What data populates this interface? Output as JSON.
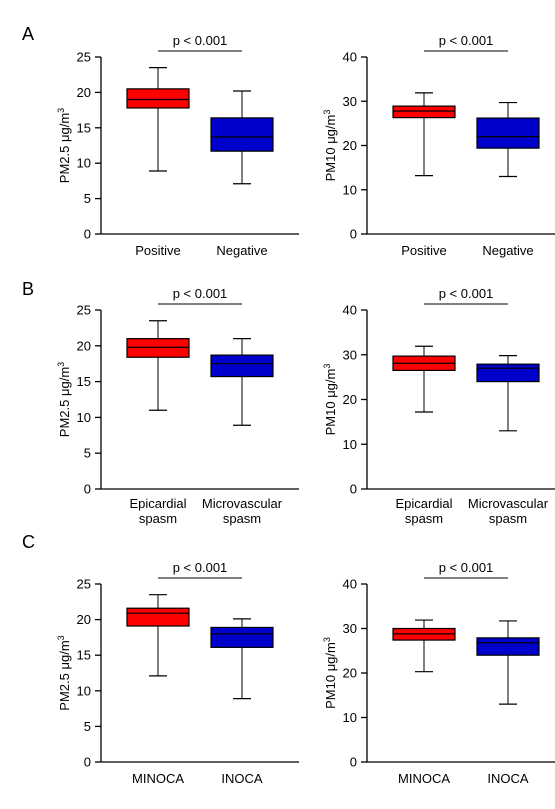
{
  "panel_labels": [
    "A",
    "B",
    "C"
  ],
  "colors": {
    "series1": "#ff0000",
    "series2": "#0000cc",
    "line": "#000000"
  },
  "chart_data": [
    {
      "type": "box",
      "panel": "A",
      "ylabel": "PM2.5 μg/m",
      "ylabel_sup": "3",
      "ylim": [
        0,
        25
      ],
      "yticks": [
        0,
        5,
        10,
        15,
        20,
        25
      ],
      "categories": [
        [
          "Positive"
        ],
        [
          "Negative"
        ]
      ],
      "boxes": [
        {
          "min": 8.9,
          "q1": 17.8,
          "median": 19.0,
          "q3": 20.5,
          "max": 23.5
        },
        {
          "min": 7.1,
          "q1": 11.7,
          "median": 13.7,
          "q3": 16.4,
          "max": 20.2
        }
      ],
      "annotation": "p < 0.001"
    },
    {
      "type": "box",
      "panel": "A",
      "ylabel": "PM10 μg/m",
      "ylabel_sup": "3",
      "ylim": [
        0,
        40
      ],
      "yticks": [
        0,
        10,
        20,
        30,
        40
      ],
      "categories": [
        [
          "Positive"
        ],
        [
          "Negative"
        ]
      ],
      "boxes": [
        {
          "min": 13.2,
          "q1": 26.3,
          "median": 27.8,
          "q3": 28.9,
          "max": 31.9
        },
        {
          "min": 13.0,
          "q1": 19.4,
          "median": 22.0,
          "q3": 26.2,
          "max": 29.7
        }
      ],
      "annotation": "p < 0.001"
    },
    {
      "type": "box",
      "panel": "B",
      "ylabel": "PM2.5 μg/m",
      "ylabel_sup": "3",
      "ylim": [
        0,
        25
      ],
      "yticks": [
        0,
        5,
        10,
        15,
        20,
        25
      ],
      "categories": [
        [
          "Epicardial",
          "spasm"
        ],
        [
          "Microvascular",
          "spasm"
        ]
      ],
      "boxes": [
        {
          "min": 11.0,
          "q1": 18.4,
          "median": 19.8,
          "q3": 21.0,
          "max": 23.5
        },
        {
          "min": 8.9,
          "q1": 15.7,
          "median": 17.5,
          "q3": 18.7,
          "max": 21.0
        }
      ],
      "annotation": "p < 0.001"
    },
    {
      "type": "box",
      "panel": "B",
      "ylabel": "PM10 μg/m",
      "ylabel_sup": "3",
      "ylim": [
        0,
        40
      ],
      "yticks": [
        0,
        10,
        20,
        30,
        40
      ],
      "categories": [
        [
          "Epicardial",
          "spasm"
        ],
        [
          "Microvascular",
          "spasm"
        ]
      ],
      "boxes": [
        {
          "min": 17.2,
          "q1": 26.5,
          "median": 28.1,
          "q3": 29.7,
          "max": 31.9
        },
        {
          "min": 13.0,
          "q1": 24.0,
          "median": 27.0,
          "q3": 27.9,
          "max": 29.8
        }
      ],
      "annotation": "p < 0.001"
    },
    {
      "type": "box",
      "panel": "C",
      "ylabel": "PM2.5 μg/m",
      "ylabel_sup": "3",
      "ylim": [
        0,
        25
      ],
      "yticks": [
        0,
        5,
        10,
        15,
        20,
        25
      ],
      "categories": [
        [
          "MINOCA"
        ],
        [
          "INOCA"
        ]
      ],
      "boxes": [
        {
          "min": 12.1,
          "q1": 19.1,
          "median": 20.9,
          "q3": 21.6,
          "max": 23.5
        },
        {
          "min": 8.9,
          "q1": 16.1,
          "median": 18.0,
          "q3": 18.9,
          "max": 20.1
        }
      ],
      "annotation": "p < 0.001"
    },
    {
      "type": "box",
      "panel": "C",
      "ylabel": "PM10 μg/m",
      "ylabel_sup": "3",
      "ylim": [
        0,
        40
      ],
      "yticks": [
        0,
        10,
        20,
        30,
        40
      ],
      "categories": [
        [
          "MINOCA"
        ],
        [
          "INOCA"
        ]
      ],
      "boxes": [
        {
          "min": 20.3,
          "q1": 27.4,
          "median": 28.8,
          "q3": 30.0,
          "max": 31.9
        },
        {
          "min": 13.0,
          "q1": 24.0,
          "median": 26.8,
          "q3": 27.9,
          "max": 31.7
        }
      ],
      "annotation": "p < 0.001"
    }
  ]
}
